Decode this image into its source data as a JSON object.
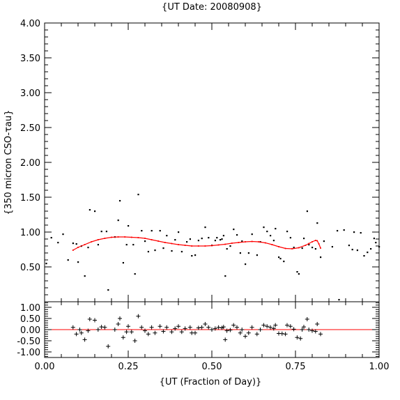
{
  "chart_data": [
    {
      "type": "scatter",
      "title": "{UT Date: 20080908}",
      "xlabel": "",
      "ylabel": "{350 micron CSO-τau}",
      "xlim": [
        0.0,
        1.0
      ],
      "ylim": [
        0.0,
        4.0
      ],
      "y_ticks": [
        "4.00",
        "3.50",
        "3.00",
        "2.50",
        "2.00",
        "1.50",
        "1.00",
        "0.50"
      ],
      "y_tick_values": [
        4.0,
        3.5,
        3.0,
        2.5,
        2.0,
        1.5,
        1.0,
        0.5
      ],
      "colors": {
        "points": "#000000",
        "fit": "#ff0000"
      },
      "series": [
        {
          "points": [
            [
              0.005,
              0.55
            ],
            [
              0.02,
              0.92
            ],
            [
              0.04,
              0.85
            ],
            [
              0.055,
              0.97
            ],
            [
              0.07,
              0.6
            ],
            [
              0.085,
              0.84
            ],
            [
              0.095,
              0.83
            ],
            [
              0.1,
              0.57
            ],
            [
              0.11,
              0.8
            ],
            [
              0.12,
              0.37
            ],
            [
              0.13,
              0.78
            ],
            [
              0.135,
              1.32
            ],
            [
              0.15,
              1.3
            ],
            [
              0.16,
              0.82
            ],
            [
              0.17,
              1.01
            ],
            [
              0.185,
              1.01
            ],
            [
              0.19,
              0.17
            ],
            [
              0.21,
              0.93
            ],
            [
              0.22,
              1.17
            ],
            [
              0.225,
              1.45
            ],
            [
              0.235,
              0.56
            ],
            [
              0.245,
              0.82
            ],
            [
              0.25,
              1.09
            ],
            [
              0.265,
              0.82
            ],
            [
              0.27,
              0.4
            ],
            [
              0.28,
              1.54
            ],
            [
              0.29,
              1.02
            ],
            [
              0.3,
              0.87
            ],
            [
              0.31,
              0.72
            ],
            [
              0.32,
              1.02
            ],
            [
              0.33,
              0.74
            ],
            [
              0.345,
              1.02
            ],
            [
              0.355,
              0.77
            ],
            [
              0.365,
              0.95
            ],
            [
              0.38,
              0.73
            ],
            [
              0.39,
              0.89
            ],
            [
              0.4,
              1.0
            ],
            [
              0.41,
              0.72
            ],
            [
              0.425,
              0.86
            ],
            [
              0.435,
              0.9
            ],
            [
              0.44,
              0.66
            ],
            [
              0.45,
              0.67
            ],
            [
              0.46,
              0.88
            ],
            [
              0.47,
              0.91
            ],
            [
              0.48,
              1.07
            ],
            [
              0.49,
              0.92
            ],
            [
              0.5,
              0.81
            ],
            [
              0.51,
              0.88
            ],
            [
              0.515,
              0.92
            ],
            [
              0.525,
              0.89
            ],
            [
              0.53,
              0.9
            ],
            [
              0.535,
              0.95
            ],
            [
              0.54,
              0.37
            ],
            [
              0.545,
              0.76
            ],
            [
              0.555,
              0.8
            ],
            [
              0.565,
              1.04
            ],
            [
              0.575,
              0.96
            ],
            [
              0.585,
              0.7
            ],
            [
              0.59,
              0.87
            ],
            [
              0.6,
              0.54
            ],
            [
              0.61,
              0.7
            ],
            [
              0.62,
              0.97
            ],
            [
              0.635,
              0.67
            ],
            [
              0.645,
              0.86
            ],
            [
              0.655,
              1.07
            ],
            [
              0.665,
              1.01
            ],
            [
              0.675,
              0.95
            ],
            [
              0.685,
              0.88
            ],
            [
              0.69,
              1.05
            ],
            [
              0.7,
              0.64
            ],
            [
              0.705,
              0.62
            ],
            [
              0.715,
              0.58
            ],
            [
              0.725,
              1.01
            ],
            [
              0.735,
              0.92
            ],
            [
              0.745,
              0.78
            ],
            [
              0.755,
              0.43
            ],
            [
              0.76,
              0.4
            ],
            [
              0.77,
              0.77
            ],
            [
              0.775,
              0.91
            ],
            [
              0.785,
              1.3
            ],
            [
              0.79,
              0.82
            ],
            [
              0.8,
              0.78
            ],
            [
              0.81,
              0.76
            ],
            [
              0.815,
              1.13
            ],
            [
              0.825,
              0.64
            ],
            [
              0.835,
              0.87
            ],
            [
              0.86,
              0.79
            ],
            [
              0.875,
              1.02
            ],
            [
              0.88,
              0.03
            ],
            [
              0.895,
              1.03
            ],
            [
              0.91,
              0.81
            ],
            [
              0.92,
              0.75
            ],
            [
              0.925,
              1.0
            ],
            [
              0.935,
              0.74
            ],
            [
              0.945,
              0.99
            ],
            [
              0.955,
              0.66
            ],
            [
              0.965,
              0.71
            ],
            [
              0.975,
              0.76
            ],
            [
              0.985,
              0.91
            ],
            [
              0.99,
              0.85
            ],
            [
              1.0,
              0.79
            ]
          ]
        },
        {
          "fit_line": [
            [
              0.085,
              0.74
            ],
            [
              0.1,
              0.78
            ],
            [
              0.12,
              0.82
            ],
            [
              0.14,
              0.86
            ],
            [
              0.16,
              0.89
            ],
            [
              0.18,
              0.91
            ],
            [
              0.2,
              0.925
            ],
            [
              0.22,
              0.93
            ],
            [
              0.24,
              0.93
            ],
            [
              0.26,
              0.925
            ],
            [
              0.28,
              0.92
            ],
            [
              0.3,
              0.91
            ],
            [
              0.32,
              0.89
            ],
            [
              0.34,
              0.87
            ],
            [
              0.36,
              0.85
            ],
            [
              0.38,
              0.835
            ],
            [
              0.4,
              0.82
            ],
            [
              0.42,
              0.81
            ],
            [
              0.44,
              0.8
            ],
            [
              0.46,
              0.8
            ],
            [
              0.48,
              0.8
            ],
            [
              0.5,
              0.805
            ],
            [
              0.52,
              0.815
            ],
            [
              0.54,
              0.825
            ],
            [
              0.56,
              0.84
            ],
            [
              0.58,
              0.85
            ],
            [
              0.6,
              0.86
            ],
            [
              0.62,
              0.865
            ],
            [
              0.64,
              0.86
            ],
            [
              0.66,
              0.845
            ],
            [
              0.68,
              0.82
            ],
            [
              0.7,
              0.79
            ],
            [
              0.72,
              0.765
            ],
            [
              0.74,
              0.76
            ],
            [
              0.76,
              0.775
            ],
            [
              0.78,
              0.81
            ],
            [
              0.79,
              0.835
            ],
            [
              0.8,
              0.86
            ],
            [
              0.81,
              0.88
            ],
            [
              0.815,
              0.875
            ],
            [
              0.82,
              0.83
            ],
            [
              0.825,
              0.77
            ]
          ]
        }
      ]
    },
    {
      "type": "scatter",
      "title": "",
      "xlabel": "{UT (Fraction of Day)}",
      "ylabel": "",
      "xlim": [
        0.0,
        1.0
      ],
      "ylim": [
        -1.25,
        1.25
      ],
      "x_ticks": [
        "0.00",
        "0.25",
        "0.50",
        "0.75",
        "1.00"
      ],
      "x_tick_values": [
        0.0,
        0.25,
        0.5,
        0.75,
        1.0
      ],
      "y_ticks": [
        "1.00",
        "0.50",
        "0.00",
        "-0.50",
        "-1.00"
      ],
      "y_tick_values": [
        1.0,
        0.5,
        0.0,
        -0.5,
        -1.0
      ],
      "reference_line": 0.0,
      "series": [
        {
          "points": [
            [
              0.085,
              0.1
            ],
            [
              0.095,
              -0.2
            ],
            [
              0.105,
              0.0
            ],
            [
              0.11,
              -0.15
            ],
            [
              0.12,
              -0.45
            ],
            [
              0.13,
              -0.05
            ],
            [
              0.135,
              0.47
            ],
            [
              0.15,
              0.42
            ],
            [
              0.16,
              0.0
            ],
            [
              0.17,
              0.12
            ],
            [
              0.18,
              0.1
            ],
            [
              0.19,
              -0.75
            ],
            [
              0.21,
              0.0
            ],
            [
              0.22,
              0.25
            ],
            [
              0.225,
              0.5
            ],
            [
              0.235,
              -0.35
            ],
            [
              0.245,
              -0.1
            ],
            [
              0.25,
              0.15
            ],
            [
              0.26,
              -0.1
            ],
            [
              0.27,
              -0.5
            ],
            [
              0.28,
              0.6
            ],
            [
              0.29,
              0.1
            ],
            [
              0.3,
              -0.05
            ],
            [
              0.31,
              -0.2
            ],
            [
              0.32,
              0.1
            ],
            [
              0.33,
              -0.15
            ],
            [
              0.345,
              0.15
            ],
            [
              0.355,
              -0.08
            ],
            [
              0.365,
              0.1
            ],
            [
              0.38,
              -0.1
            ],
            [
              0.39,
              0.05
            ],
            [
              0.4,
              0.15
            ],
            [
              0.41,
              -0.1
            ],
            [
              0.42,
              0.05
            ],
            [
              0.435,
              0.1
            ],
            [
              0.44,
              -0.15
            ],
            [
              0.45,
              -0.15
            ],
            [
              0.46,
              0.08
            ],
            [
              0.47,
              0.1
            ],
            [
              0.48,
              0.25
            ],
            [
              0.49,
              0.1
            ],
            [
              0.5,
              0.0
            ],
            [
              0.51,
              0.05
            ],
            [
              0.52,
              0.1
            ],
            [
              0.53,
              0.08
            ],
            [
              0.535,
              0.12
            ],
            [
              0.54,
              -0.45
            ],
            [
              0.545,
              -0.05
            ],
            [
              0.555,
              -0.02
            ],
            [
              0.565,
              0.2
            ],
            [
              0.575,
              0.1
            ],
            [
              0.585,
              -0.15
            ],
            [
              0.59,
              0.0
            ],
            [
              0.6,
              -0.3
            ],
            [
              0.61,
              -0.15
            ],
            [
              0.62,
              0.1
            ],
            [
              0.635,
              -0.2
            ],
            [
              0.645,
              0.0
            ],
            [
              0.655,
              0.2
            ],
            [
              0.665,
              0.15
            ],
            [
              0.675,
              0.1
            ],
            [
              0.685,
              0.05
            ],
            [
              0.69,
              0.2
            ],
            [
              0.7,
              -0.17
            ],
            [
              0.71,
              -0.18
            ],
            [
              0.72,
              -0.2
            ],
            [
              0.725,
              0.2
            ],
            [
              0.735,
              0.15
            ],
            [
              0.745,
              0.02
            ],
            [
              0.755,
              -0.35
            ],
            [
              0.765,
              -0.4
            ],
            [
              0.77,
              0.0
            ],
            [
              0.775,
              0.12
            ],
            [
              0.785,
              0.47
            ],
            [
              0.79,
              0.0
            ],
            [
              0.8,
              -0.05
            ],
            [
              0.81,
              -0.08
            ],
            [
              0.815,
              0.25
            ],
            [
              0.825,
              -0.2
            ]
          ]
        }
      ]
    }
  ]
}
